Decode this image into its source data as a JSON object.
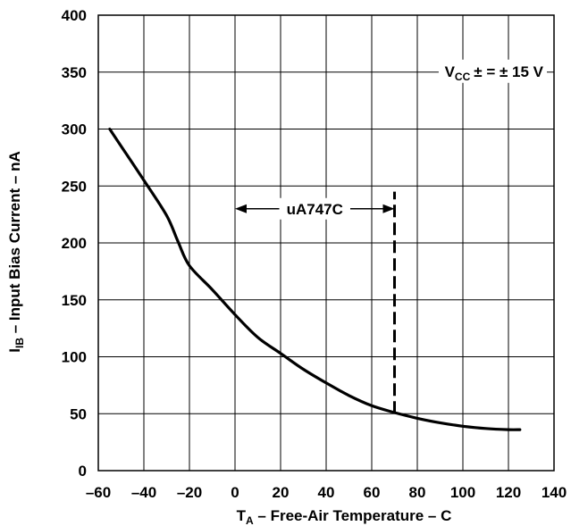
{
  "chart_data": {
    "type": "line",
    "title": "",
    "xlabel": {
      "main": "T",
      "sub": "A",
      "rest": " – Free-Air Temperature – C"
    },
    "ylabel": {
      "main": "I",
      "sub": "IB",
      "rest": " – Input Bias Current – nA"
    },
    "xlim": [
      -60,
      140
    ],
    "ylim": [
      0,
      400
    ],
    "xticks": [
      -60,
      -40,
      -20,
      0,
      20,
      40,
      60,
      80,
      100,
      120,
      140
    ],
    "xtick_labels": [
      "–60",
      "–40",
      "–20",
      "0",
      "20",
      "40",
      "60",
      "80",
      "100",
      "120",
      "140"
    ],
    "yticks": [
      0,
      50,
      100,
      150,
      200,
      250,
      300,
      350,
      400
    ],
    "ytick_labels": [
      "0",
      "50",
      "100",
      "150",
      "200",
      "250",
      "300",
      "350",
      "400"
    ],
    "grid": true,
    "series": [
      {
        "x": [
          -55,
          -50,
          -40,
          -30,
          -25,
          -20,
          -10,
          0,
          10,
          20,
          30,
          40,
          50,
          60,
          70,
          80,
          90,
          100,
          110,
          120,
          125
        ],
        "y": [
          300,
          285,
          255,
          224,
          201,
          180,
          159,
          137,
          117,
          103,
          89,
          77,
          66,
          57,
          51,
          46,
          42,
          39,
          37,
          36,
          36
        ]
      }
    ],
    "annotations": {
      "vcc": {
        "main": "V",
        "sub": "CC",
        "rest": "± = ± 15 V"
      },
      "range_label": "uA747C",
      "range_x": [
        0,
        70
      ],
      "range_y": 230,
      "dashed_x": 70,
      "dashed_y": [
        50,
        245
      ]
    }
  }
}
